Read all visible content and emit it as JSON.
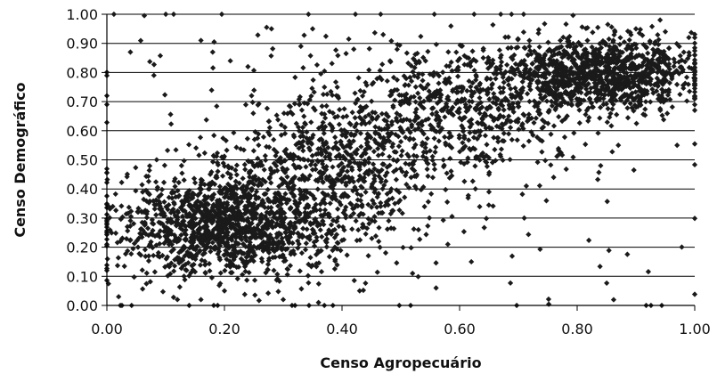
{
  "chart_data": {
    "type": "scatter",
    "title": "",
    "xlabel": "Censo Agropecuário",
    "ylabel": "Censo Demográfico",
    "xlim": [
      0,
      1
    ],
    "ylim": [
      0,
      1
    ],
    "x_ticks": [
      "0.00",
      "0.20",
      "0.40",
      "0.60",
      "0.80",
      "1.00"
    ],
    "y_ticks": [
      "0.00",
      "0.10",
      "0.20",
      "0.30",
      "0.40",
      "0.50",
      "0.60",
      "0.70",
      "0.80",
      "0.90",
      "1.00"
    ],
    "grid": "horizontal",
    "marker": "diamond",
    "colors": {
      "points": "#1a1a1a",
      "gridlines": "#000000"
    },
    "series": [
      {
        "clusters": [
          {
            "center": [
              0.2,
              0.28
            ],
            "spread": [
              0.09,
              0.09
            ],
            "count": 1300
          },
          {
            "center": [
              0.38,
              0.45
            ],
            "spread": [
              0.1,
              0.13
            ],
            "count": 700
          },
          {
            "center": [
              0.6,
              0.68
            ],
            "spread": [
              0.11,
              0.1
            ],
            "count": 650
          },
          {
            "center": [
              0.84,
              0.8
            ],
            "spread": [
              0.08,
              0.06
            ],
            "count": 1100
          },
          {
            "center": [
              0.5,
              0.5
            ],
            "spread": [
              0.3,
              0.3
            ],
            "count": 200
          }
        ],
        "points": [
          [
            0.67,
            1.0
          ],
          [
            0.04,
            0.87
          ],
          [
            0.16,
            0.91
          ],
          [
            0.35,
            0.95
          ],
          [
            0.28,
            0.95
          ],
          [
            0.97,
            0.55
          ],
          [
            0.56,
            0.06
          ],
          [
            0.37,
            0.0
          ],
          [
            0.14,
            0.0
          ],
          [
            0.0,
            0.72
          ],
          [
            0.0,
            0.69
          ],
          [
            0.01,
            0.34
          ],
          [
            0.0,
            0.21
          ],
          [
            0.0,
            0.12
          ],
          [
            0.02,
            0.03
          ],
          [
            0.99,
            0.92
          ],
          [
            0.98,
            0.81
          ],
          [
            0.9,
            0.95
          ],
          [
            0.95,
            0.94
          ],
          [
            0.47,
            0.93
          ],
          [
            0.43,
            0.05
          ],
          [
            0.52,
            0.11
          ],
          [
            0.62,
            0.15
          ],
          [
            0.58,
            0.21
          ],
          [
            0.53,
            0.26
          ],
          [
            0.08,
            0.79
          ],
          [
            0.12,
            0.02
          ],
          [
            0.16,
            0.02
          ],
          [
            0.2,
            0.05
          ],
          [
            0.3,
            0.02
          ],
          [
            0.32,
            0.0
          ],
          [
            0.36,
            0.01
          ],
          [
            0.77,
            0.52
          ],
          [
            0.87,
            0.55
          ],
          [
            0.65,
            0.39
          ],
          [
            0.76,
            0.44
          ],
          [
            0.84,
            0.48
          ],
          [
            0.71,
            0.3
          ],
          [
            0.7,
            0.64
          ],
          [
            0.65,
            0.45
          ],
          [
            0.18,
            0.87
          ],
          [
            0.21,
            0.84
          ],
          [
            0.24,
            0.82
          ],
          [
            0.33,
            0.89
          ],
          [
            0.42,
            0.88
          ]
        ]
      }
    ]
  }
}
